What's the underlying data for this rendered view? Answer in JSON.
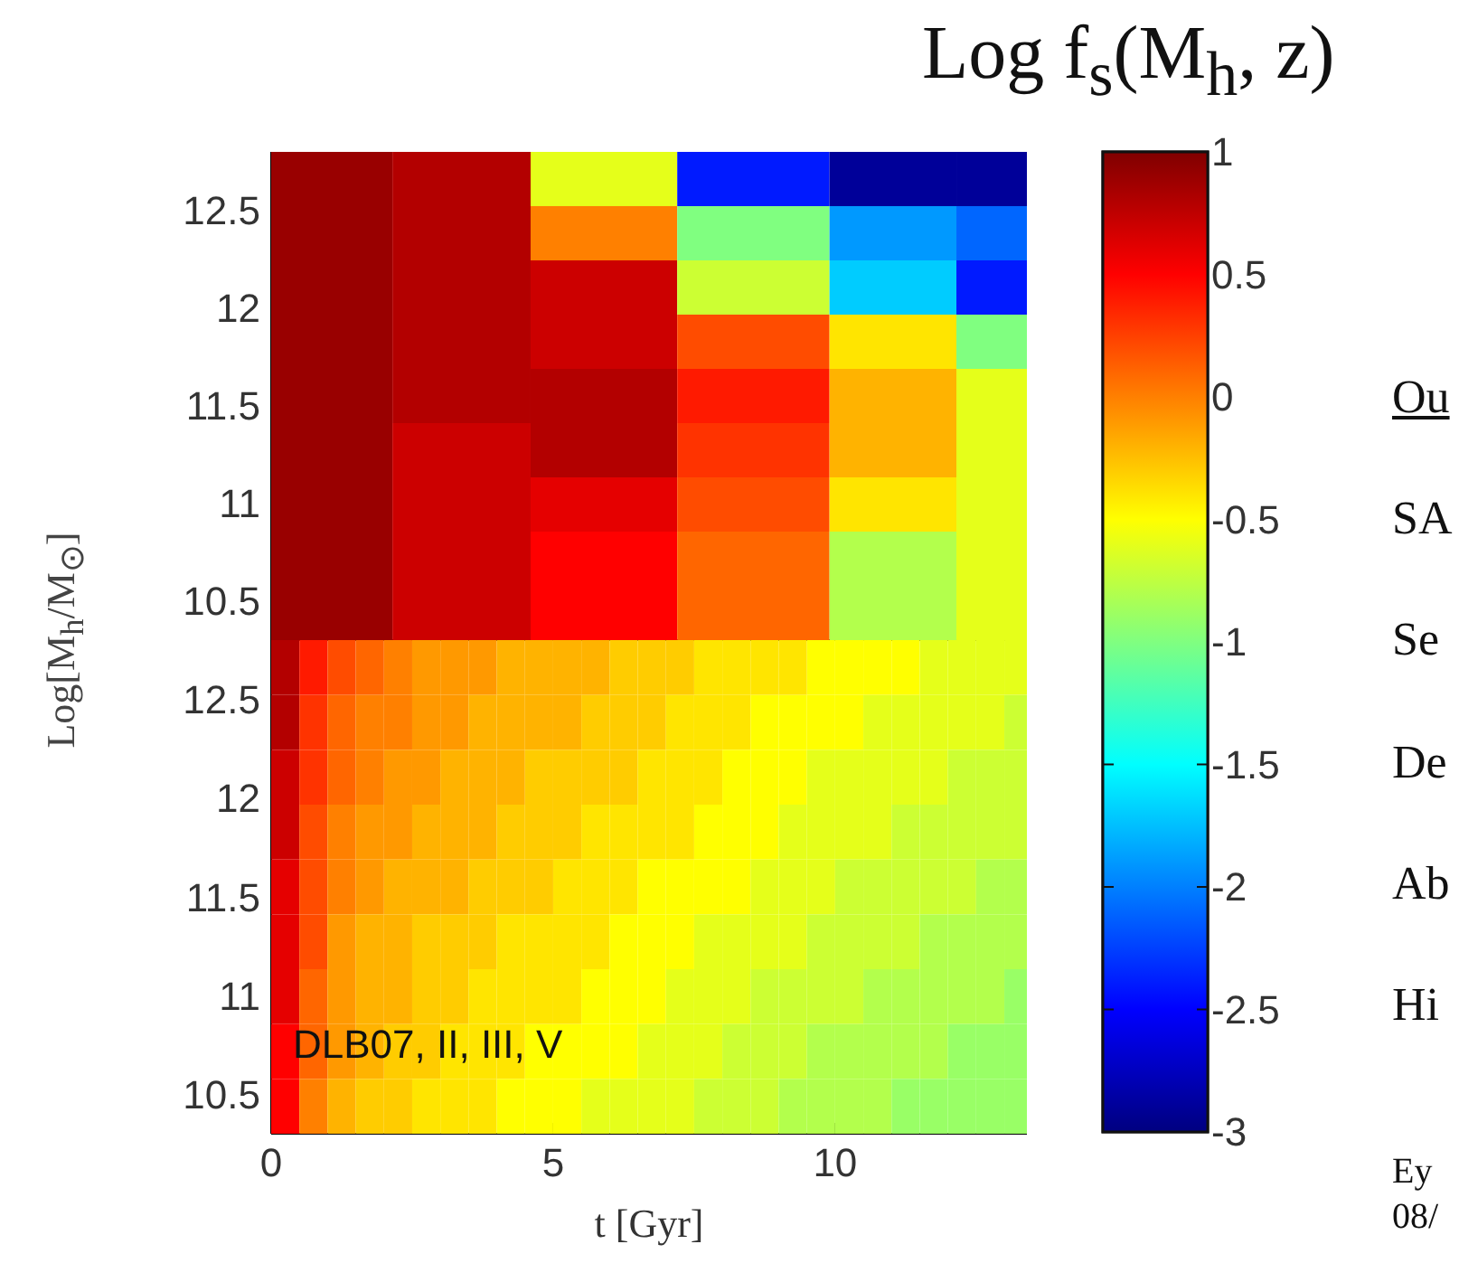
{
  "chart_data": [
    {
      "type": "heatmap",
      "title": "Log f$_{s}$(M$_{h}$, z)",
      "ylabel": "Log[M$_{h}$/M$_{⊙}$]",
      "x": [
        1,
        3.3,
        5.9,
        8.5,
        11.3,
        13
      ],
      "cells": [
        [
          0.9,
          0.8,
          -0.6,
          -2.4,
          -2.9,
          -2.9
        ],
        [
          0.9,
          0.8,
          0,
          -1,
          -1.9,
          -2.1
        ],
        [
          0.9,
          0.8,
          0.7,
          -0.7,
          -1.7,
          -2.4
        ],
        [
          0.9,
          0.8,
          0.7,
          0.2,
          -0.4,
          -1
        ],
        [
          0.9,
          0.8,
          0.8,
          0.4,
          -0.2,
          -0.6
        ],
        [
          0.9,
          0.7,
          0.8,
          0.3,
          -0.2,
          -0.6
        ],
        [
          0.9,
          0.7,
          0.6,
          0.2,
          -0.4,
          -0.6
        ],
        [
          0.9,
          0.7,
          0.5,
          0.1,
          -0.8,
          -0.6
        ],
        [
          0.9,
          0.7,
          0.5,
          0.1,
          -0.8,
          -0.6
        ]
      ],
      "xlim": [
        0,
        13.4
      ],
      "xticks": [
        0,
        5,
        10
      ],
      "ylim": [
        10.3,
        12.8
      ],
      "yticks": [
        10.5,
        11,
        11.5,
        12,
        12.5
      ],
      "clim": [
        -3,
        1
      ],
      "cticks": [
        -1,
        -0.5,
        0,
        0.5,
        1
      ],
      "tick_labels": "y"
    },
    {
      "type": "heatmap",
      "xlabel": "t [Gyr]",
      "annotations": [
        "DLB07, II, III, V"
      ],
      "x": [
        0.25,
        0.75,
        1.25,
        1.75,
        2.25,
        2.75,
        3.25,
        3.75,
        4.25,
        4.75,
        5.25,
        5.75,
        6.25,
        6.75,
        7.25,
        7.75,
        8.25,
        8.75,
        9.25,
        9.75,
        10.25,
        10.75,
        11.25,
        11.75,
        12.25,
        12.75,
        13.25
      ],
      "cells": [
        [
          0.8,
          0.4,
          0.2,
          0.1,
          0,
          -0.1,
          -0.1,
          -0.1,
          -0.2,
          -0.2,
          -0.2,
          -0.2,
          -0.3,
          -0.3,
          -0.3,
          -0.4,
          -0.4,
          -0.4,
          -0.4,
          -0.5,
          -0.5,
          -0.5,
          -0.5,
          -0.6,
          -0.6,
          -0.6,
          -0.6
        ],
        [
          0.8,
          0.3,
          0.1,
          0,
          0,
          -0.1,
          -0.1,
          -0.2,
          -0.2,
          -0.2,
          -0.2,
          -0.3,
          -0.3,
          -0.3,
          -0.4,
          -0.4,
          -0.4,
          -0.5,
          -0.5,
          -0.5,
          -0.5,
          -0.6,
          -0.6,
          -0.6,
          -0.6,
          -0.6,
          -0.7
        ],
        [
          0.7,
          0.3,
          0.1,
          0,
          -0.1,
          -0.1,
          -0.2,
          -0.2,
          -0.2,
          -0.3,
          -0.3,
          -0.3,
          -0.3,
          -0.4,
          -0.4,
          -0.4,
          -0.5,
          -0.5,
          -0.5,
          -0.6,
          -0.6,
          -0.6,
          -0.6,
          -0.6,
          -0.7,
          -0.7,
          -0.7
        ],
        [
          0.7,
          0.2,
          0,
          -0.1,
          -0.1,
          -0.2,
          -0.2,
          -0.2,
          -0.3,
          -0.3,
          -0.3,
          -0.4,
          -0.4,
          -0.4,
          -0.4,
          -0.5,
          -0.5,
          -0.5,
          -0.6,
          -0.6,
          -0.6,
          -0.6,
          -0.7,
          -0.7,
          -0.7,
          -0.7,
          -0.7
        ],
        [
          0.6,
          0.2,
          0,
          -0.1,
          -0.2,
          -0.2,
          -0.2,
          -0.3,
          -0.3,
          -0.3,
          -0.4,
          -0.4,
          -0.4,
          -0.5,
          -0.5,
          -0.5,
          -0.5,
          -0.6,
          -0.6,
          -0.6,
          -0.7,
          -0.7,
          -0.7,
          -0.7,
          -0.7,
          -0.8,
          -0.8
        ],
        [
          0.6,
          0.2,
          -0.1,
          -0.2,
          -0.2,
          -0.3,
          -0.3,
          -0.3,
          -0.4,
          -0.4,
          -0.4,
          -0.4,
          -0.5,
          -0.5,
          -0.5,
          -0.6,
          -0.6,
          -0.6,
          -0.6,
          -0.7,
          -0.7,
          -0.7,
          -0.7,
          -0.8,
          -0.8,
          -0.8,
          -0.8
        ],
        [
          0.6,
          0.1,
          -0.1,
          -0.2,
          -0.2,
          -0.3,
          -0.3,
          -0.4,
          -0.4,
          -0.4,
          -0.4,
          -0.5,
          -0.5,
          -0.5,
          -0.6,
          -0.6,
          -0.6,
          -0.7,
          -0.7,
          -0.7,
          -0.7,
          -0.8,
          -0.8,
          -0.8,
          -0.8,
          -0.8,
          -0.9
        ],
        [
          0.5,
          0.1,
          -0.1,
          -0.2,
          -0.3,
          -0.3,
          -0.4,
          -0.4,
          -0.4,
          -0.5,
          -0.5,
          -0.5,
          -0.5,
          -0.6,
          -0.6,
          -0.6,
          -0.7,
          -0.7,
          -0.7,
          -0.8,
          -0.8,
          -0.8,
          -0.8,
          -0.8,
          -0.9,
          -0.9,
          -0.9
        ],
        [
          0.5,
          0,
          -0.2,
          -0.3,
          -0.3,
          -0.4,
          -0.4,
          -0.4,
          -0.5,
          -0.5,
          -0.5,
          -0.6,
          -0.6,
          -0.6,
          -0.6,
          -0.7,
          -0.7,
          -0.7,
          -0.8,
          -0.8,
          -0.8,
          -0.8,
          -0.9,
          -0.9,
          -0.9,
          -0.9,
          -0.9
        ]
      ],
      "xlim": [
        0,
        13.4
      ],
      "xticks": [
        0,
        5,
        10
      ],
      "ylim": [
        10.3,
        12.8
      ],
      "yticks": [
        10.5,
        11,
        11.5,
        12,
        12.5
      ],
      "clim": [
        -3,
        1
      ],
      "cticks": [
        -3,
        -2.5,
        -2,
        -1.5
      ]
    },
    {
      "type": "other",
      "annotations": [
        "Ou",
        "SA",
        "Se",
        "De",
        "Ab",
        "Hi",
        "Ey",
        "08/"
      ]
    }
  ]
}
